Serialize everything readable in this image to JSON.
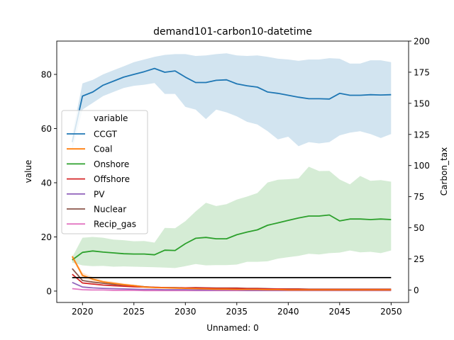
{
  "chart_data": {
    "type": "line",
    "title": "demand101-carbon10-datetime",
    "xlabel": "Unnamed: 0",
    "ylabel": "value",
    "y2label": "Carbon_tax",
    "xlim": [
      2017.5,
      2051.7
    ],
    "ylim": [
      -4.2,
      92.3
    ],
    "y2lim": [
      -10,
      200
    ],
    "xticks": [
      2020,
      2025,
      2030,
      2035,
      2040,
      2045,
      2050
    ],
    "yticks": [
      0,
      20,
      40,
      60,
      80
    ],
    "y2ticks": [
      0,
      25,
      50,
      75,
      100,
      125,
      150,
      175,
      200
    ],
    "legend": {
      "title": "variable",
      "position": "center-left"
    },
    "x": [
      2019,
      2020,
      2021,
      2022,
      2023,
      2024,
      2025,
      2026,
      2027,
      2028,
      2029,
      2030,
      2031,
      2032,
      2033,
      2034,
      2035,
      2036,
      2037,
      2038,
      2039,
      2040,
      2041,
      2042,
      2043,
      2044,
      2045,
      2046,
      2047,
      2048,
      2049,
      2050
    ],
    "series": [
      {
        "name": "CCGT",
        "color": "#1f77b4",
        "values": [
          55,
          72,
          73.5,
          76,
          77.5,
          79,
          80,
          81,
          82.2,
          80.8,
          81.3,
          79,
          77,
          77,
          77.8,
          78,
          76.5,
          75.8,
          75.3,
          73.5,
          73,
          72.3,
          71.6,
          71,
          71,
          70.9,
          73,
          72.3,
          72.3,
          72.5,
          72.4,
          72.5
        ],
        "lower": [
          52,
          67,
          69.5,
          72,
          73.5,
          75,
          75.8,
          76.2,
          76.8,
          72.8,
          72.8,
          68,
          67,
          63.5,
          67,
          66,
          64.5,
          62.5,
          61.5,
          59,
          56,
          57,
          53.5,
          55,
          54.5,
          55,
          57.5,
          58.5,
          59,
          58,
          56.5,
          58
        ],
        "upper": [
          58,
          76.7,
          78,
          80,
          81.5,
          83,
          84.5,
          85.5,
          86.5,
          87.2,
          87.5,
          87.5,
          86.8,
          87,
          87.5,
          87.8,
          87,
          86.8,
          87,
          86.5,
          85.8,
          85.5,
          85,
          85.5,
          85.5,
          86,
          85.8,
          84,
          84,
          85.2,
          85.2,
          84.5
        ]
      },
      {
        "name": "Coal",
        "color": "#ff7f0e",
        "values": [
          12.8,
          5.8,
          4.4,
          3.4,
          2.9,
          2.4,
          2.0,
          1.5,
          1.3,
          1.2,
          1.1,
          1.0,
          0.9,
          0.8,
          0.7,
          0.7,
          0.6,
          0.6,
          0.6,
          0.5,
          0.5,
          0.4,
          0.4,
          0.4,
          0.4,
          0.4,
          0.4,
          0.4,
          0.4,
          0.4,
          0.4,
          0.4
        ],
        "lower": [
          12,
          4.8,
          3.6,
          2.8,
          2.3,
          1.9,
          1.6,
          1.2,
          1.0,
          0.9,
          0.8,
          0.7,
          0.6,
          0.6,
          0.5,
          0.5,
          0.4,
          0.4,
          0.4,
          0.3,
          0.3,
          0.3,
          0.3,
          0.3,
          0.3,
          0.3,
          0.3,
          0.3,
          0.3,
          0.3,
          0.3,
          0.3
        ],
        "upper": [
          13.6,
          6.8,
          5.2,
          4.0,
          3.5,
          2.9,
          2.4,
          1.8,
          1.6,
          1.5,
          1.4,
          1.3,
          1.2,
          1.0,
          0.9,
          0.9,
          0.8,
          0.8,
          0.8,
          0.7,
          0.7,
          0.5,
          0.5,
          0.5,
          0.5,
          0.5,
          0.5,
          0.5,
          0.5,
          0.5,
          0.5,
          0.5
        ]
      },
      {
        "name": "Onshore",
        "color": "#2ca02c",
        "values": [
          11.5,
          14.3,
          14.8,
          14.4,
          14.1,
          13.8,
          13.7,
          13.7,
          13.4,
          15.1,
          15,
          17.5,
          19.5,
          19.8,
          19.3,
          19.3,
          20.8,
          21.8,
          22.6,
          24.3,
          25.2,
          26.1,
          27,
          27.7,
          27.7,
          28.1,
          25.9,
          26.6,
          26.6,
          26.4,
          26.6,
          26.4
        ],
        "lower": [
          10.5,
          9.5,
          9.2,
          9.3,
          9,
          9.1,
          9,
          8.9,
          8.8,
          8.7,
          8.5,
          9.2,
          10,
          9.5,
          9.6,
          9.6,
          9.8,
          10.8,
          10.8,
          11,
          12,
          12.5,
          13,
          13.8,
          13.5,
          14,
          14.2,
          15,
          14.3,
          14.5,
          14,
          15
        ],
        "upper": [
          12.5,
          19.7,
          20,
          19.7,
          19,
          18.8,
          18.4,
          18.5,
          17.9,
          23.3,
          23.2,
          25.8,
          29.4,
          32.6,
          31.4,
          32.1,
          33.8,
          34.9,
          36.2,
          40.1,
          41.1,
          41.3,
          41.6,
          45.9,
          44.3,
          44.4,
          41.2,
          39.4,
          42.5,
          40.7,
          41,
          40.4
        ]
      },
      {
        "name": "Offshore",
        "color": "#d62728",
        "values": [
          6.2,
          3.0,
          2.6,
          2.2,
          2.0,
          1.8,
          1.6,
          1.5,
          1.4,
          1.3,
          1.2,
          1.2,
          1.2,
          1.1,
          1.0,
          1.0,
          1.0,
          0.9,
          0.9,
          0.8,
          0.8,
          0.7,
          0.7,
          0.6,
          0.6,
          0.6,
          0.6,
          0.6,
          0.6,
          0.6,
          0.6,
          0.6
        ]
      },
      {
        "name": "PV",
        "color": "#9467bd",
        "values": [
          3.2,
          1.5,
          1.2,
          1.0,
          0.9,
          0.8,
          0.7,
          0.6,
          0.6,
          0.5,
          0.5,
          0.5,
          0.4,
          0.4,
          0.4,
          0.4,
          0.4,
          0.3,
          0.3,
          0.3,
          0.3,
          0.3,
          0.3,
          0.3,
          0.3,
          0.3,
          0.3,
          0.3,
          0.3,
          0.3,
          0.3,
          0.3
        ]
      },
      {
        "name": "Nuclear",
        "color": "#8c564b",
        "values": [
          8.3,
          3.9,
          3.3,
          2.9,
          2.5,
          2.2,
          2.0,
          1.6,
          1.4,
          1.3,
          1.3,
          1.2,
          1.3,
          1.2,
          1.1,
          1.1,
          1.1,
          1.0,
          1.0,
          0.9,
          0.8,
          0.8,
          0.8,
          0.7,
          0.7,
          0.7,
          0.7,
          0.7,
          0.7,
          0.7,
          0.7,
          0.7
        ]
      },
      {
        "name": "Recip_gas",
        "color": "#e377c2",
        "values": [
          0.9,
          0.5,
          0.4,
          0.4,
          0.3,
          0.3,
          0.3,
          0.2,
          0.2,
          0.2,
          0.2,
          0.2,
          0.2,
          0.2,
          0.2,
          0.2,
          0.2,
          0.2,
          0.2,
          0.2,
          0.2,
          0.2,
          0.2,
          0.2,
          0.2,
          0.2,
          0.2,
          0.2,
          0.2,
          0.2,
          0.2,
          0.2
        ]
      }
    ],
    "carbon_tax": {
      "color": "#000000",
      "axis": "right",
      "x": [
        2019,
        2050
      ],
      "values": [
        10,
        10
      ]
    }
  }
}
